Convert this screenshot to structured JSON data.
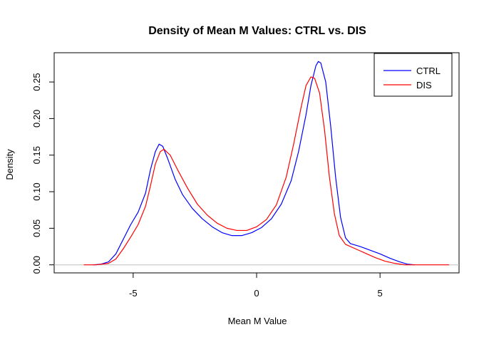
{
  "chart_data": {
    "type": "line",
    "title": "Density of Mean M Values: CTRL vs. DIS",
    "xlabel": "Mean M Value",
    "ylabel": "Density",
    "xlim": [
      -8.2,
      8.2
    ],
    "ylim": [
      -0.011,
      0.29
    ],
    "x_ticks": [
      -5,
      0,
      5
    ],
    "y_ticks": [
      0.0,
      0.05,
      0.1,
      0.15,
      0.2,
      0.25
    ],
    "y_tick_labels": [
      "0.00",
      "0.05",
      "0.10",
      "0.15",
      "0.20",
      "0.25"
    ],
    "x_tick_labels": [
      "-5",
      "0",
      "5"
    ],
    "baseline": 0,
    "grid": false,
    "legend_position": "top-right",
    "series": [
      {
        "name": "CTRL",
        "color": "#0000ff",
        "points": [
          [
            -6.6,
            0.0
          ],
          [
            -6.3,
            0.001
          ],
          [
            -6.0,
            0.004
          ],
          [
            -5.7,
            0.015
          ],
          [
            -5.4,
            0.035
          ],
          [
            -5.1,
            0.055
          ],
          [
            -4.8,
            0.072
          ],
          [
            -4.5,
            0.098
          ],
          [
            -4.3,
            0.13
          ],
          [
            -4.1,
            0.155
          ],
          [
            -3.95,
            0.165
          ],
          [
            -3.8,
            0.162
          ],
          [
            -3.6,
            0.145
          ],
          [
            -3.3,
            0.117
          ],
          [
            -3.0,
            0.096
          ],
          [
            -2.6,
            0.077
          ],
          [
            -2.2,
            0.063
          ],
          [
            -1.8,
            0.052
          ],
          [
            -1.4,
            0.044
          ],
          [
            -1.0,
            0.04
          ],
          [
            -0.6,
            0.04
          ],
          [
            -0.2,
            0.044
          ],
          [
            0.2,
            0.051
          ],
          [
            0.6,
            0.063
          ],
          [
            1.0,
            0.083
          ],
          [
            1.4,
            0.115
          ],
          [
            1.7,
            0.155
          ],
          [
            2.0,
            0.205
          ],
          [
            2.2,
            0.245
          ],
          [
            2.4,
            0.272
          ],
          [
            2.5,
            0.278
          ],
          [
            2.6,
            0.276
          ],
          [
            2.8,
            0.25
          ],
          [
            3.0,
            0.19
          ],
          [
            3.2,
            0.12
          ],
          [
            3.4,
            0.065
          ],
          [
            3.6,
            0.037
          ],
          [
            3.8,
            0.029
          ],
          [
            4.2,
            0.025
          ],
          [
            4.6,
            0.02
          ],
          [
            5.0,
            0.015
          ],
          [
            5.4,
            0.009
          ],
          [
            5.8,
            0.004
          ],
          [
            6.1,
            0.001
          ],
          [
            6.4,
            0.0
          ]
        ]
      },
      {
        "name": "DIS",
        "color": "#ff0000",
        "points": [
          [
            -7.0,
            0.0
          ],
          [
            -6.5,
            0.0
          ],
          [
            -6.0,
            0.002
          ],
          [
            -5.7,
            0.008
          ],
          [
            -5.4,
            0.022
          ],
          [
            -5.1,
            0.038
          ],
          [
            -4.8,
            0.055
          ],
          [
            -4.5,
            0.08
          ],
          [
            -4.3,
            0.108
          ],
          [
            -4.1,
            0.138
          ],
          [
            -3.9,
            0.155
          ],
          [
            -3.75,
            0.158
          ],
          [
            -3.5,
            0.15
          ],
          [
            -3.2,
            0.13
          ],
          [
            -2.8,
            0.105
          ],
          [
            -2.4,
            0.083
          ],
          [
            -2.0,
            0.068
          ],
          [
            -1.6,
            0.057
          ],
          [
            -1.2,
            0.05
          ],
          [
            -0.8,
            0.047
          ],
          [
            -0.4,
            0.047
          ],
          [
            0.0,
            0.052
          ],
          [
            0.4,
            0.062
          ],
          [
            0.8,
            0.082
          ],
          [
            1.2,
            0.12
          ],
          [
            1.5,
            0.165
          ],
          [
            1.8,
            0.215
          ],
          [
            2.0,
            0.245
          ],
          [
            2.2,
            0.257
          ],
          [
            2.35,
            0.255
          ],
          [
            2.55,
            0.235
          ],
          [
            2.75,
            0.185
          ],
          [
            2.95,
            0.12
          ],
          [
            3.15,
            0.07
          ],
          [
            3.35,
            0.04
          ],
          [
            3.6,
            0.028
          ],
          [
            4.0,
            0.022
          ],
          [
            4.4,
            0.016
          ],
          [
            4.8,
            0.01
          ],
          [
            5.2,
            0.005
          ],
          [
            5.6,
            0.002
          ],
          [
            6.0,
            0.0
          ],
          [
            7.0,
            0.0
          ],
          [
            7.8,
            0.0
          ]
        ]
      }
    ]
  }
}
